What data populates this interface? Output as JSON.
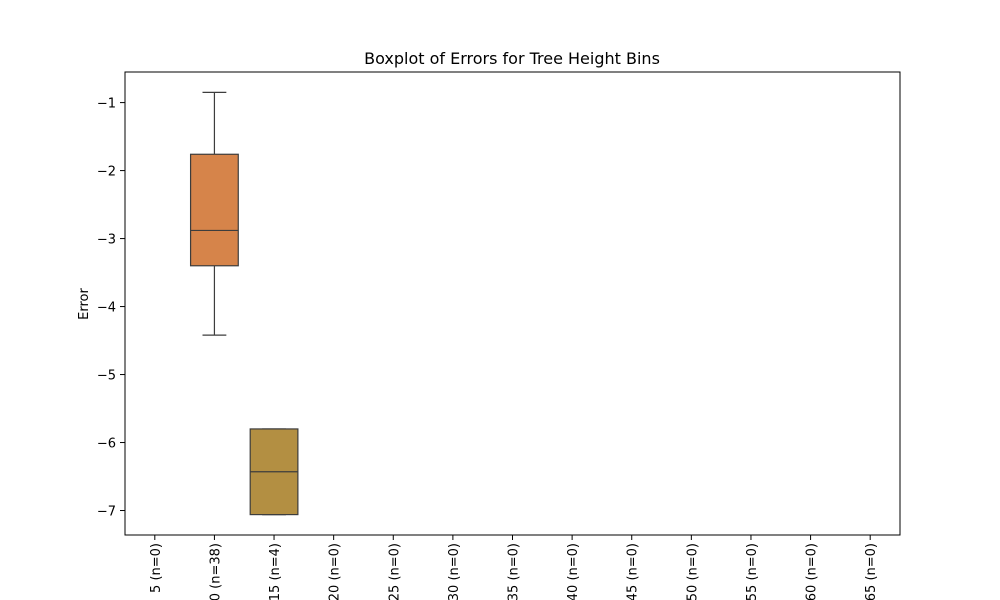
{
  "chart_data": {
    "type": "box",
    "title": "Boxplot of Errors for Tree Height Bins",
    "xlabel": "",
    "ylabel": "Error",
    "ylim": [
      -7.36,
      -0.55
    ],
    "yticks": [
      -1,
      -2,
      -3,
      -4,
      -5,
      -6,
      -7
    ],
    "ytick_labels": [
      "−1",
      "−2",
      "−3",
      "−4",
      "−5",
      "−6",
      "−7"
    ],
    "grid": false,
    "categories": [
      "5 (n=0)",
      "0 (n=38)",
      "15 (n=4)",
      "20 (n=0)",
      "25 (n=0)",
      "30 (n=0)",
      "35 (n=0)",
      "40 (n=0)",
      "45 (n=0)",
      "50 (n=0)",
      "55 (n=0)",
      "60 (n=0)",
      "65 (n=0)"
    ],
    "boxes": [
      {
        "category_index": 1,
        "color": "#d6844a",
        "whisker_low": -4.42,
        "q1": -3.4,
        "median": -2.88,
        "q3": -1.76,
        "whisker_high": -0.85
      },
      {
        "category_index": 2,
        "color": "#b38f42",
        "whisker_low": -7.06,
        "q1": -7.06,
        "median": -6.43,
        "q3": -5.8,
        "whisker_high": -5.8
      }
    ]
  }
}
